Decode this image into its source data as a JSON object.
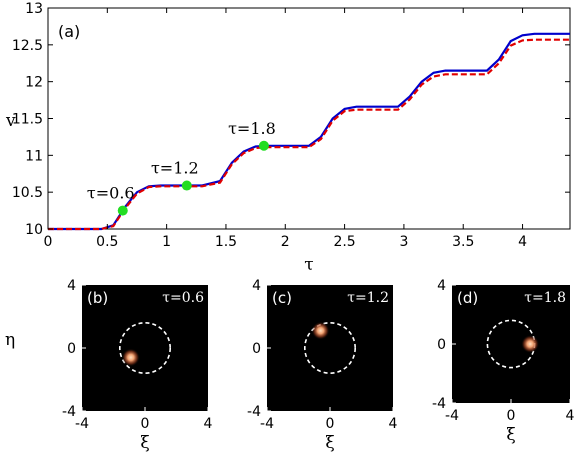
{
  "chart_data": [
    {
      "type": "line",
      "panel_label": "(a)",
      "xlabel": "τ",
      "ylabel": "v",
      "xlim": [
        0,
        4.4
      ],
      "ylim": [
        10,
        13
      ],
      "x_ticks": [
        "0",
        "0.5",
        "1",
        "1.5",
        "2",
        "2.5",
        "3",
        "3.5",
        "4"
      ],
      "y_ticks": [
        "10",
        "10.5",
        "11",
        "11.5",
        "12",
        "12.5",
        "13"
      ],
      "series": [
        {
          "style": "solid",
          "color": "#0000cc",
          "x": [
            0,
            0.45,
            0.55,
            0.65,
            0.75,
            0.85,
            0.95,
            1.3,
            1.45,
            1.55,
            1.65,
            1.75,
            1.85,
            2.2,
            2.3,
            2.4,
            2.5,
            2.6,
            2.95,
            3.05,
            3.15,
            3.25,
            3.35,
            3.7,
            3.8,
            3.9,
            4.0,
            4.1,
            4.4
          ],
          "y": [
            10.0,
            10.0,
            10.05,
            10.3,
            10.5,
            10.58,
            10.59,
            10.59,
            10.65,
            10.9,
            11.05,
            11.12,
            11.13,
            11.13,
            11.25,
            11.5,
            11.63,
            11.66,
            11.66,
            11.8,
            12.0,
            12.12,
            12.15,
            12.15,
            12.3,
            12.55,
            12.63,
            12.65,
            12.65
          ]
        },
        {
          "style": "dashed",
          "color": "#e00000",
          "x": [
            0,
            0.45,
            0.55,
            0.65,
            0.75,
            0.85,
            0.95,
            1.3,
            1.45,
            1.55,
            1.65,
            1.75,
            1.85,
            2.2,
            2.3,
            2.4,
            2.5,
            2.6,
            2.95,
            3.05,
            3.15,
            3.25,
            3.35,
            3.7,
            3.8,
            3.9,
            4.0,
            4.1,
            4.4
          ],
          "y": [
            10.0,
            10.0,
            10.04,
            10.28,
            10.48,
            10.57,
            10.58,
            10.58,
            10.63,
            10.88,
            11.03,
            11.1,
            11.11,
            11.11,
            11.22,
            11.47,
            11.6,
            11.62,
            11.62,
            11.76,
            11.96,
            12.07,
            12.1,
            12.1,
            12.25,
            12.49,
            12.56,
            12.57,
            12.57
          ]
        }
      ],
      "markers": [
        {
          "x": 0.63,
          "y": 10.25,
          "label": "τ=0.6",
          "color": "#22dd22"
        },
        {
          "x": 1.17,
          "y": 10.59,
          "label": "τ=1.2",
          "color": "#22dd22"
        },
        {
          "x": 1.82,
          "y": 11.13,
          "label": "τ=1.8",
          "color": "#22dd22"
        }
      ]
    },
    {
      "type": "heatmap",
      "panel_label": "(b)",
      "tau_label": "τ=0.6",
      "xlabel": "ξ",
      "ylabel": "η",
      "xlim": [
        -4,
        4
      ],
      "ylim": [
        -4,
        4
      ],
      "x_ticks": [
        "-4",
        "0",
        "4"
      ],
      "y_ticks": [
        "4",
        "0",
        "-4"
      ],
      "circle_radius": 1.6,
      "spot": {
        "x": -0.9,
        "y": -0.6
      }
    },
    {
      "type": "heatmap",
      "panel_label": "(c)",
      "tau_label": "τ=1.2",
      "xlabel": "ξ",
      "ylabel": "η",
      "xlim": [
        -4,
        4
      ],
      "ylim": [
        -4,
        4
      ],
      "x_ticks": [
        "-4",
        "0",
        "4"
      ],
      "y_ticks": [
        "4",
        "0",
        "-4"
      ],
      "circle_radius": 1.6,
      "spot": {
        "x": -0.6,
        "y": 1.1
      }
    },
    {
      "type": "heatmap",
      "panel_label": "(d)",
      "tau_label": "τ=1.8",
      "xlabel": "ξ",
      "ylabel": "η",
      "xlim": [
        -4,
        4
      ],
      "ylim": [
        -4,
        4
      ],
      "x_ticks": [
        "-4",
        "0",
        "4"
      ],
      "y_ticks": [
        "4",
        "0",
        "-4"
      ],
      "circle_radius": 1.6,
      "spot": {
        "x": 1.3,
        "y": 0.0
      }
    }
  ]
}
